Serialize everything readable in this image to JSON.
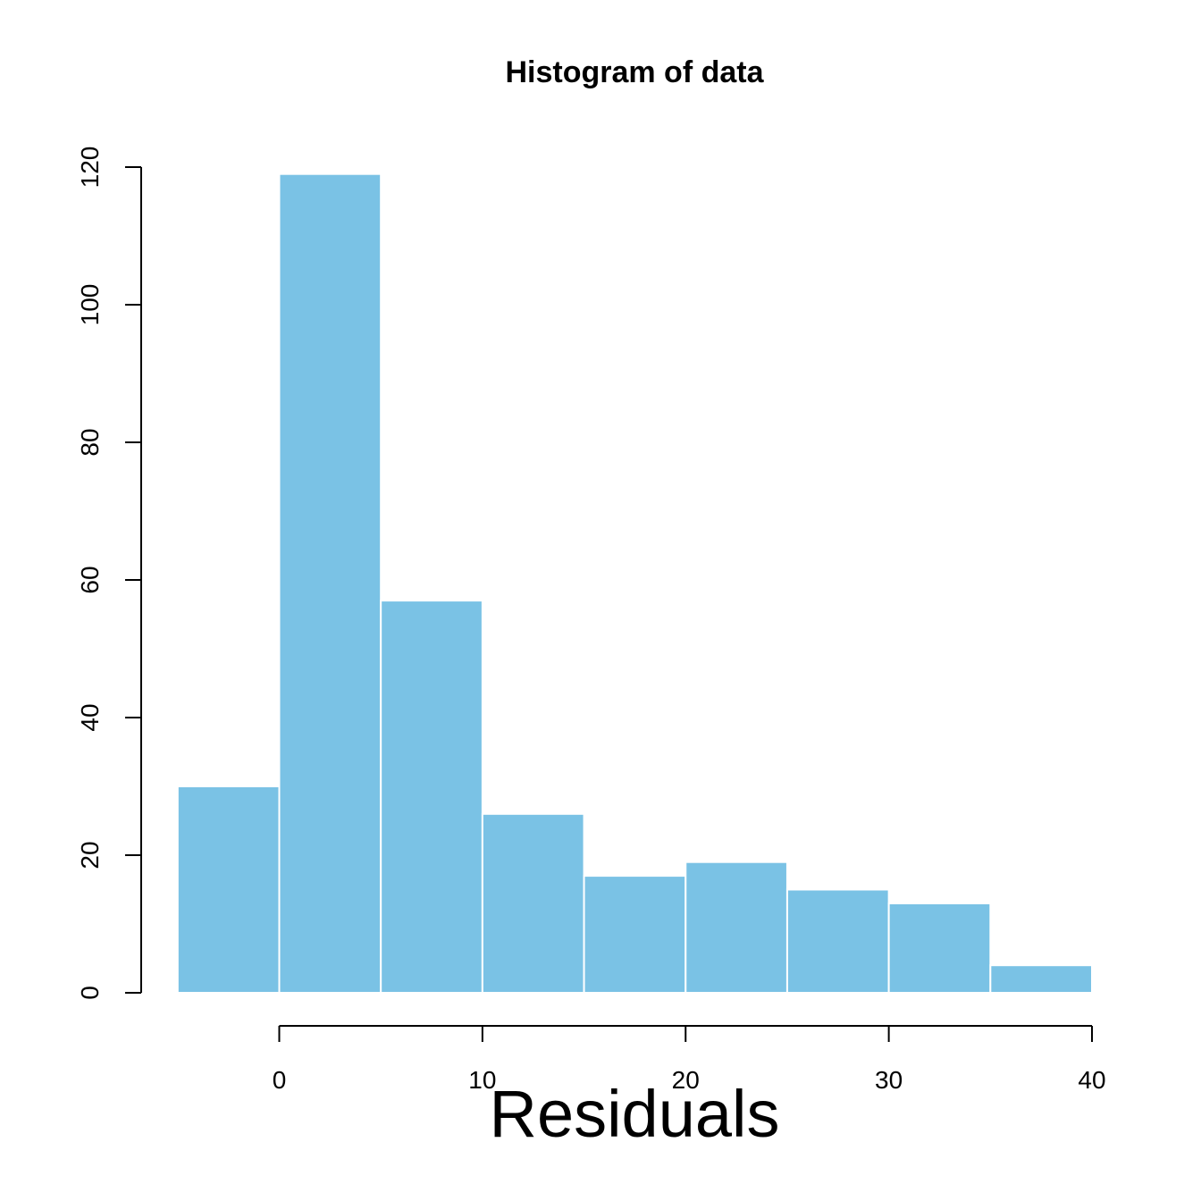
{
  "chart_data": {
    "type": "bar",
    "title": "Histogram of data",
    "xlabel": "Residuals",
    "ylabel": "",
    "bins": [
      {
        "start": -5,
        "end": 0,
        "count": 30
      },
      {
        "start": 0,
        "end": 5,
        "count": 119
      },
      {
        "start": 5,
        "end": 10,
        "count": 57
      },
      {
        "start": 10,
        "end": 15,
        "count": 26
      },
      {
        "start": 15,
        "end": 20,
        "count": 17
      },
      {
        "start": 20,
        "end": 25,
        "count": 19
      },
      {
        "start": 25,
        "end": 30,
        "count": 15
      },
      {
        "start": 30,
        "end": 35,
        "count": 13
      },
      {
        "start": 35,
        "end": 40,
        "count": 4
      }
    ],
    "x_ticks": [
      "0",
      "10",
      "20",
      "30",
      "40"
    ],
    "y_ticks": [
      "0",
      "20",
      "40",
      "60",
      "80",
      "100",
      "120"
    ],
    "xlim": [
      0,
      40
    ],
    "ylim": [
      0,
      120
    ],
    "bar_color": "#7ac2e5",
    "grid": false
  }
}
